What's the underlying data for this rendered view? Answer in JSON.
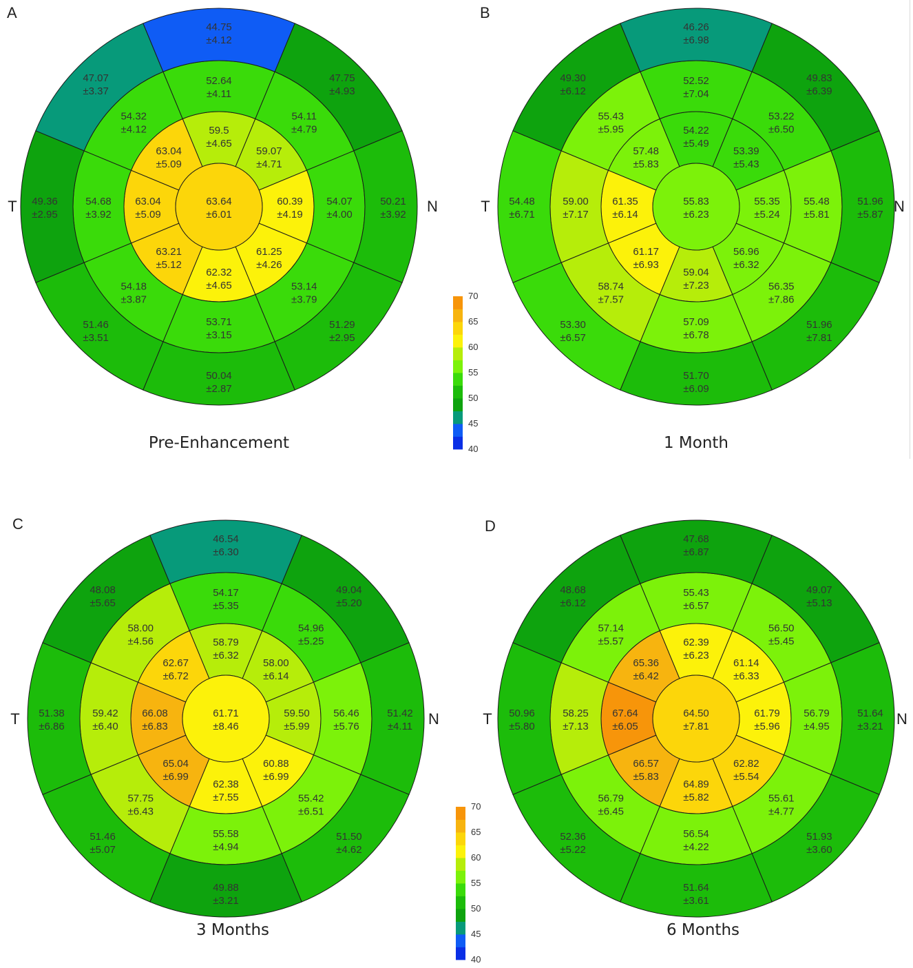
{
  "chart_data": [
    {
      "type": "polar-heatmap",
      "panel": "A",
      "caption": "Pre-Enhancement",
      "side_labels": {
        "left": "T",
        "right": "N"
      },
      "center": {
        "mean": "63.64",
        "sd": "±6.01"
      },
      "inner": [
        {
          "position": "top",
          "mean": "59.5",
          "sd": "±4.65"
        },
        {
          "position": "top-right",
          "mean": "59.07",
          "sd": "±4.71"
        },
        {
          "position": "right",
          "mean": "60.39",
          "sd": "±4.19"
        },
        {
          "position": "bottom-right",
          "mean": "61.25",
          "sd": "±4.26"
        },
        {
          "position": "bottom",
          "mean": "62.32",
          "sd": "±4.65"
        },
        {
          "position": "bottom-left",
          "mean": "63.21",
          "sd": "±5.12"
        },
        {
          "position": "left",
          "mean": "63.04",
          "sd": "±5.09"
        },
        {
          "position": "top-left",
          "mean": "63.04",
          "sd": "±5.09"
        }
      ],
      "middle": [
        {
          "position": "top",
          "mean": "52.64",
          "sd": "±4.11"
        },
        {
          "position": "top-right",
          "mean": "54.11",
          "sd": "±4.79"
        },
        {
          "position": "right",
          "mean": "54.07",
          "sd": "±4.00"
        },
        {
          "position": "bottom-right",
          "mean": "53.14",
          "sd": "±3.79"
        },
        {
          "position": "bottom",
          "mean": "53.71",
          "sd": "±3.15"
        },
        {
          "position": "bottom-left",
          "mean": "54.18",
          "sd": "±3.87"
        },
        {
          "position": "left",
          "mean": "54.68",
          "sd": "±3.92"
        },
        {
          "position": "top-left",
          "mean": "54.32",
          "sd": "±4.12"
        }
      ],
      "outer": [
        {
          "position": "top",
          "mean": "44.75",
          "sd": "±4.12"
        },
        {
          "position": "top-right",
          "mean": "47.75",
          "sd": "±4.93"
        },
        {
          "position": "right",
          "mean": "50.21",
          "sd": "±3.92"
        },
        {
          "position": "bottom-right",
          "mean": "51.29",
          "sd": "±2.95"
        },
        {
          "position": "bottom",
          "mean": "50.04",
          "sd": "±2.87"
        },
        {
          "position": "bottom-left",
          "mean": "51.46",
          "sd": "±3.51"
        },
        {
          "position": "left",
          "mean": "49.36",
          "sd": "±2.95"
        },
        {
          "position": "top-left",
          "mean": "47.07",
          "sd": "±3.37"
        }
      ]
    },
    {
      "type": "polar-heatmap",
      "panel": "B",
      "caption": "1 Month",
      "side_labels": {
        "left": "T",
        "right": "N"
      },
      "center": {
        "mean": "55.83",
        "sd": "±6.23"
      },
      "inner": [
        {
          "position": "top",
          "mean": "54.22",
          "sd": "±5.49"
        },
        {
          "position": "top-right",
          "mean": "53.39",
          "sd": "±5.43"
        },
        {
          "position": "right",
          "mean": "55.35",
          "sd": "±5.24"
        },
        {
          "position": "bottom-right",
          "mean": "56.96",
          "sd": "±6.32"
        },
        {
          "position": "bottom",
          "mean": "59.04",
          "sd": "±7.23"
        },
        {
          "position": "bottom-left",
          "mean": "61.17",
          "sd": "±6.93"
        },
        {
          "position": "left",
          "mean": "61.35",
          "sd": "±6.14"
        },
        {
          "position": "top-left",
          "mean": "57.48",
          "sd": "±5.83"
        }
      ],
      "middle": [
        {
          "position": "top",
          "mean": "52.52",
          "sd": "±7.04"
        },
        {
          "position": "top-right",
          "mean": "53.22",
          "sd": "±6.50"
        },
        {
          "position": "right",
          "mean": "55.48",
          "sd": "±5.81"
        },
        {
          "position": "bottom-right",
          "mean": "56.35",
          "sd": "±7.86"
        },
        {
          "position": "bottom",
          "mean": "57.09",
          "sd": "±6.78"
        },
        {
          "position": "bottom-left",
          "mean": "58.74",
          "sd": "±7.57"
        },
        {
          "position": "left",
          "mean": "59.00",
          "sd": "±7.17"
        },
        {
          "position": "top-left",
          "mean": "55.43",
          "sd": "±5.95"
        }
      ],
      "outer": [
        {
          "position": "top",
          "mean": "46.26",
          "sd": "±6.98"
        },
        {
          "position": "top-right",
          "mean": "49.83",
          "sd": "±6.39"
        },
        {
          "position": "right",
          "mean": "51.96",
          "sd": "±5.87"
        },
        {
          "position": "bottom-right",
          "mean": "51.96",
          "sd": "±7.81"
        },
        {
          "position": "bottom",
          "mean": "51.70",
          "sd": "±6.09"
        },
        {
          "position": "bottom-left",
          "mean": "53.30",
          "sd": "±6.57"
        },
        {
          "position": "left",
          "mean": "54.48",
          "sd": "±6.71"
        },
        {
          "position": "top-left",
          "mean": "49.30",
          "sd": "±6.12"
        }
      ]
    },
    {
      "type": "polar-heatmap",
      "panel": "C",
      "caption": "3 Months",
      "side_labels": {
        "left": "T",
        "right": "N"
      },
      "center": {
        "mean": "61.71",
        "sd": "±8.46"
      },
      "inner": [
        {
          "position": "top",
          "mean": "58.79",
          "sd": "±6.32"
        },
        {
          "position": "top-right",
          "mean": "58.00",
          "sd": "±6.14"
        },
        {
          "position": "right",
          "mean": "59.50",
          "sd": "±5.99"
        },
        {
          "position": "bottom-right",
          "mean": "60.88",
          "sd": "±6.99"
        },
        {
          "position": "bottom",
          "mean": "62.38",
          "sd": "±7.55"
        },
        {
          "position": "bottom-left",
          "mean": "65.04",
          "sd": "±6.99"
        },
        {
          "position": "left",
          "mean": "66.08",
          "sd": "±6.83"
        },
        {
          "position": "top-left",
          "mean": "62.67",
          "sd": "±6.72"
        }
      ],
      "middle": [
        {
          "position": "top",
          "mean": "54.17",
          "sd": "±5.35"
        },
        {
          "position": "top-right",
          "mean": "54.96",
          "sd": "±5.25"
        },
        {
          "position": "right",
          "mean": "56.46",
          "sd": "±5.76"
        },
        {
          "position": "bottom-right",
          "mean": "55.42",
          "sd": "±6.51"
        },
        {
          "position": "bottom",
          "mean": "55.58",
          "sd": "±4.94"
        },
        {
          "position": "bottom-left",
          "mean": "57.75",
          "sd": "±6.43"
        },
        {
          "position": "left",
          "mean": "59.42",
          "sd": "±6.40"
        },
        {
          "position": "top-left",
          "mean": "58.00",
          "sd": "±4.56"
        }
      ],
      "outer": [
        {
          "position": "top",
          "mean": "46.54",
          "sd": "±6.30"
        },
        {
          "position": "top-right",
          "mean": "49.04",
          "sd": "±5.20"
        },
        {
          "position": "right",
          "mean": "51.42",
          "sd": "±4.11"
        },
        {
          "position": "bottom-right",
          "mean": "51.50",
          "sd": "±4.62"
        },
        {
          "position": "bottom",
          "mean": "49.88",
          "sd": "±3.21"
        },
        {
          "position": "bottom-left",
          "mean": "51.46",
          "sd": "±5.07"
        },
        {
          "position": "left",
          "mean": "51.38",
          "sd": "±6.86"
        },
        {
          "position": "top-left",
          "mean": "48.08",
          "sd": "±5.65"
        }
      ]
    },
    {
      "type": "polar-heatmap",
      "panel": "D",
      "caption": "6 Months",
      "side_labels": {
        "left": "T",
        "right": "N"
      },
      "center": {
        "mean": "64.50",
        "sd": "±7.81"
      },
      "inner": [
        {
          "position": "top",
          "mean": "62.39",
          "sd": "±6.23"
        },
        {
          "position": "top-right",
          "mean": "61.14",
          "sd": "±6.33"
        },
        {
          "position": "right",
          "mean": "61.79",
          "sd": "±5.96"
        },
        {
          "position": "bottom-right",
          "mean": "62.82",
          "sd": "±5.54"
        },
        {
          "position": "bottom",
          "mean": "64.89",
          "sd": "±5.82"
        },
        {
          "position": "bottom-left",
          "mean": "66.57",
          "sd": "±5.83"
        },
        {
          "position": "left",
          "mean": "67.64",
          "sd": "±6.05"
        },
        {
          "position": "top-left",
          "mean": "65.36",
          "sd": "±6.42"
        }
      ],
      "middle": [
        {
          "position": "top",
          "mean": "55.43",
          "sd": "±6.57"
        },
        {
          "position": "top-right",
          "mean": "56.50",
          "sd": "±5.45"
        },
        {
          "position": "right",
          "mean": "56.79",
          "sd": "±4.95"
        },
        {
          "position": "bottom-right",
          "mean": "55.61",
          "sd": "±4.77"
        },
        {
          "position": "bottom",
          "mean": "56.54",
          "sd": "±4.22"
        },
        {
          "position": "bottom-left",
          "mean": "56.79",
          "sd": "±6.45"
        },
        {
          "position": "left",
          "mean": "58.25",
          "sd": "±7.13"
        },
        {
          "position": "top-left",
          "mean": "57.14",
          "sd": "±5.57"
        }
      ],
      "outer": [
        {
          "position": "top",
          "mean": "47.68",
          "sd": "±6.87"
        },
        {
          "position": "top-right",
          "mean": "49.07",
          "sd": "±5.13"
        },
        {
          "position": "right",
          "mean": "51.64",
          "sd": "±3.21"
        },
        {
          "position": "bottom-right",
          "mean": "51.93",
          "sd": "±3.60"
        },
        {
          "position": "bottom",
          "mean": "51.64",
          "sd": "±3.61"
        },
        {
          "position": "bottom-left",
          "mean": "52.36",
          "sd": "±5.22"
        },
        {
          "position": "left",
          "mean": "50.96",
          "sd": "±5.80"
        },
        {
          "position": "top-left",
          "mean": "48.68",
          "sd": "±6.12"
        }
      ]
    }
  ],
  "colorbar": {
    "ticks": [
      "70",
      "65",
      "60",
      "55",
      "50",
      "45",
      "40"
    ],
    "range": [
      40,
      70
    ],
    "bands": [
      {
        "min": 40,
        "max": 42.5,
        "color": "#0a2fe6"
      },
      {
        "min": 42.5,
        "max": 45,
        "color": "#0f5cf5"
      },
      {
        "min": 45,
        "max": 47.5,
        "color": "#079a7a"
      },
      {
        "min": 47.5,
        "max": 50,
        "color": "#0ea30e"
      },
      {
        "min": 50,
        "max": 52.5,
        "color": "#1cbc0a"
      },
      {
        "min": 52.5,
        "max": 55,
        "color": "#3adb0a"
      },
      {
        "min": 55,
        "max": 57.5,
        "color": "#7cf20a"
      },
      {
        "min": 57.5,
        "max": 60,
        "color": "#b6ed0a"
      },
      {
        "min": 60,
        "max": 62.5,
        "color": "#fcf20a"
      },
      {
        "min": 62.5,
        "max": 65,
        "color": "#fcd60a"
      },
      {
        "min": 65,
        "max": 67.5,
        "color": "#f7b40f"
      },
      {
        "min": 67.5,
        "max": 70,
        "color": "#f7950a"
      }
    ]
  }
}
